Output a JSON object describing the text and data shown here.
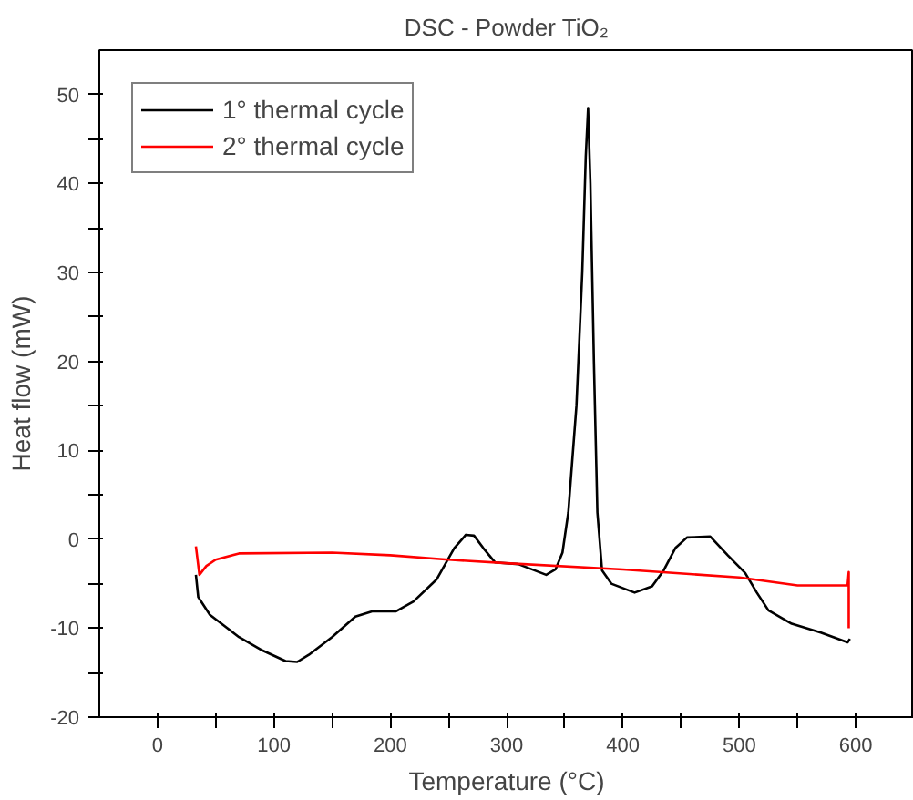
{
  "chart_data": {
    "type": "line",
    "title": "DSC - Powder TiO₂",
    "xlabel": "Temperature (°C)",
    "ylabel": "Heat flow (mW)",
    "xlim": [
      -50,
      650
    ],
    "ylim": [
      -20,
      55
    ],
    "xticks": [
      0,
      {
        "value": 50,
        "label": null
      },
      100,
      {
        "value": 150,
        "label": null
      },
      200,
      {
        "value": 250,
        "label": null
      },
      300,
      {
        "value": 350,
        "label": null
      },
      400,
      {
        "value": 450,
        "label": null
      },
      500,
      {
        "value": 550,
        "label": null
      },
      600
    ],
    "yticks": [
      -20,
      {
        "value": -15,
        "label": null
      },
      -10,
      {
        "value": -5,
        "label": null
      },
      0,
      {
        "value": 5,
        "label": null
      },
      10,
      {
        "value": 15,
        "label": null
      },
      20,
      {
        "value": 25,
        "label": null
      },
      30,
      {
        "value": 35,
        "label": null
      },
      40,
      {
        "value": 45,
        "label": null
      },
      50
    ],
    "grid": false,
    "legend": "top left",
    "marker": "none",
    "line_style": "solid",
    "series": [
      {
        "name": "1° thermal cycle",
        "color": "#000000",
        "x": [
          33,
          35,
          45,
          70,
          90,
          110,
          120,
          130,
          150,
          170,
          185,
          205,
          220,
          240,
          255,
          265,
          272,
          280,
          290,
          310,
          334,
          342,
          348,
          353,
          360,
          365,
          368,
          370,
          372,
          375,
          378,
          382,
          390,
          410,
          425,
          435,
          445,
          455,
          475,
          490,
          505,
          515,
          525,
          545,
          570,
          593,
          595
        ],
        "values": [
          -4,
          -6.5,
          -8.5,
          -11,
          -12.5,
          -13.7,
          -13.8,
          -13,
          -11,
          -8.7,
          -8.1,
          -8.1,
          -7,
          -4.5,
          -1,
          0.5,
          0.4,
          -1,
          -2.6,
          -2.8,
          -4,
          -3.4,
          -1.5,
          3,
          15,
          30,
          43,
          48.5,
          40,
          20,
          3,
          -3.5,
          -5,
          -6,
          -5.3,
          -3.5,
          -1,
          0.2,
          0.3,
          -1.8,
          -3.8,
          -6,
          -8,
          -9.5,
          -10.5,
          -11.6,
          -11.2
        ]
      },
      {
        "name": "2° thermal cycle",
        "color": "#ff0000",
        "x": [
          33,
          36,
          42,
          50,
          70,
          150,
          200,
          250,
          300,
          400,
          500,
          550,
          593,
          594,
          594
        ],
        "values": [
          -0.8,
          -4,
          -3,
          -2.3,
          -1.6,
          -1.5,
          -1.8,
          -2.3,
          -2.7,
          -3.4,
          -4.3,
          -5.2,
          -5.2,
          -3.7,
          -10
        ]
      }
    ]
  }
}
